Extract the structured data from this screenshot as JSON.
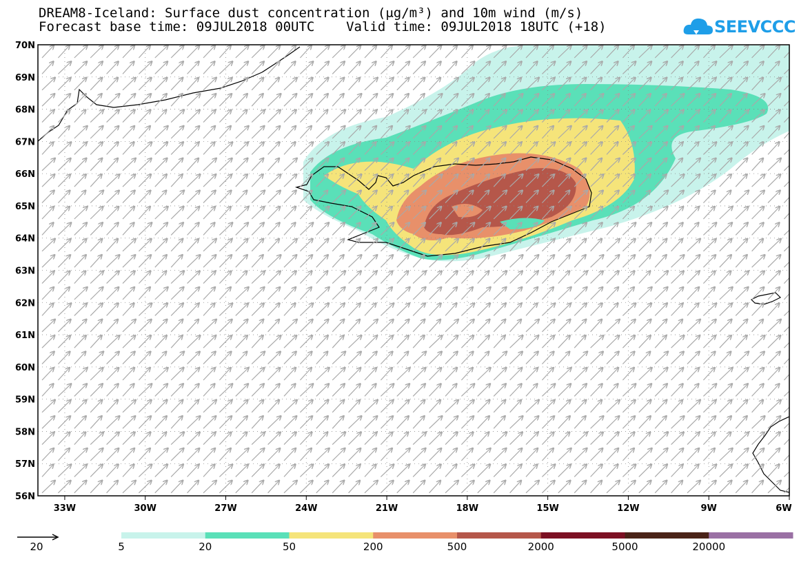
{
  "title": {
    "line1": "DREAM8-Iceland: Surface dust concentration (μg/m³) and 10m wind (m/s)",
    "line2": "Forecast base time: 09JUL2018 00UTC    Valid time: 09JUL2018 18UTC (+18)"
  },
  "logo": {
    "text": "SEEVCCC",
    "icon": "cloud-icon",
    "color": "#1e9ee8"
  },
  "map": {
    "lat_labels": [
      "70N",
      "69N",
      "68N",
      "67N",
      "66N",
      "65N",
      "64N",
      "63N",
      "62N",
      "61N",
      "60N",
      "59N",
      "58N",
      "57N",
      "56N"
    ],
    "lon_labels": [
      "33W",
      "30W",
      "27W",
      "24W",
      "21W",
      "18W",
      "15W",
      "12W",
      "9W",
      "6W"
    ],
    "grid": true,
    "wind_arrow_color": "#a9a9a9"
  },
  "legend": {
    "wind_reference": "20",
    "levels": [
      "5",
      "20",
      "50",
      "200",
      "500",
      "2000",
      "5000",
      "20000"
    ],
    "colors": [
      "#c8f3eb",
      "#5ae0b8",
      "#f5e47a",
      "#e8906a",
      "#b5574a",
      "#7c1023",
      "#4a2318",
      "#9a70a4"
    ]
  }
}
